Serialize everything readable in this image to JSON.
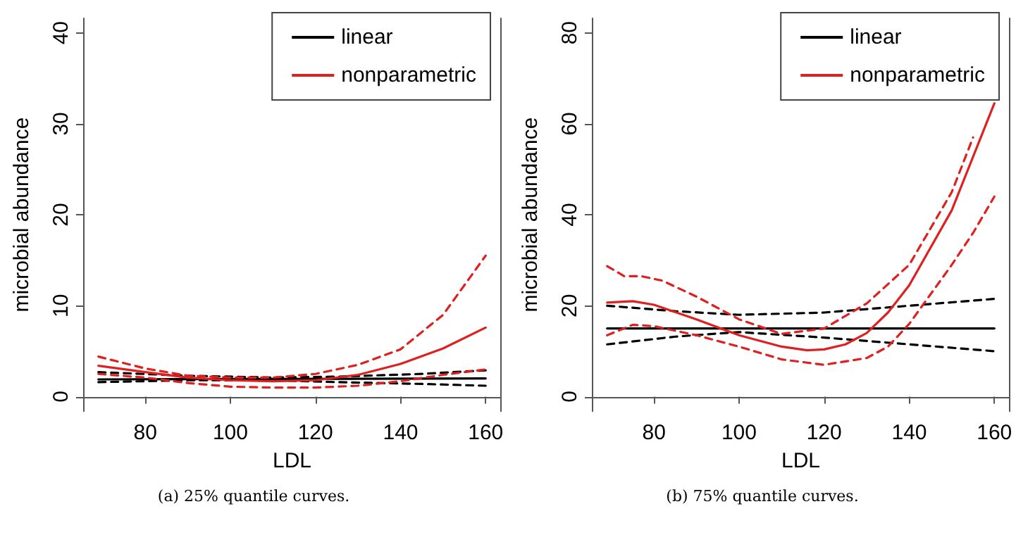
{
  "chart_data": [
    {
      "type": "line",
      "xlabel": "LDL",
      "ylabel": "microbial abundance",
      "annotations": [
        "(a) 25% quantile curves."
      ],
      "xlim": [
        65.4,
        163.6
      ],
      "ylim": [
        -1.6,
        41.6
      ],
      "xticks": [
        80,
        100,
        120,
        140,
        160
      ],
      "yticks": [
        0,
        10,
        20,
        30,
        40
      ],
      "grid": false,
      "legend": "top right",
      "marker": "none",
      "series": [
        {
          "name": "linear",
          "color": "#000000",
          "line_style": "solid",
          "x": [
            69,
            160
          ],
          "values": [
            1.9,
            2.0
          ]
        },
        {
          "color": "#000000",
          "line_style": "dashed",
          "x": [
            69,
            90,
            110,
            125,
            145,
            160
          ],
          "values": [
            2.7,
            2.3,
            2.1,
            2.2,
            2.5,
            2.9
          ]
        },
        {
          "color": "#000000",
          "line_style": "dashed",
          "x": [
            69,
            90,
            110,
            125,
            145,
            160
          ],
          "values": [
            1.6,
            1.8,
            1.8,
            1.6,
            1.4,
            1.2
          ]
        },
        {
          "name": "nonparametric",
          "color": "#df2020",
          "line_style": "solid",
          "x": [
            69,
            80,
            90,
            100,
            110,
            120,
            130,
            140,
            150,
            160
          ],
          "values": [
            3.4,
            2.7,
            2.1,
            1.8,
            1.7,
            1.8,
            2.4,
            3.6,
            5.3,
            7.6
          ]
        },
        {
          "color": "#df2020",
          "line_style": "dashed",
          "x": [
            69,
            80,
            90,
            100,
            110,
            120,
            130,
            140,
            150,
            160
          ],
          "values": [
            4.4,
            3.1,
            2.3,
            2.1,
            2.1,
            2.5,
            3.5,
            5.2,
            9.0,
            15.5
          ]
        },
        {
          "color": "#df2020",
          "line_style": "dashed",
          "x": [
            69,
            80,
            90,
            100,
            110,
            120,
            130,
            140,
            150,
            160
          ],
          "values": [
            2.5,
            2.1,
            1.5,
            1.1,
            1.0,
            1.0,
            1.2,
            1.7,
            2.4,
            3.0
          ]
        }
      ]
    },
    {
      "type": "line",
      "xlabel": "LDL",
      "ylabel": "microbial abundance",
      "annotations": [
        "(b) 75% quantile curves."
      ],
      "xlim": [
        65.4,
        163.6
      ],
      "ylim": [
        -3.2,
        83.2
      ],
      "xticks": [
        80,
        100,
        120,
        140,
        160
      ],
      "yticks": [
        0,
        20,
        40,
        60,
        80
      ],
      "grid": false,
      "legend": "top right",
      "marker": "none",
      "series": [
        {
          "name": "linear",
          "color": "#000000",
          "line_style": "solid",
          "x": [
            69,
            160
          ],
          "values": [
            15,
            15
          ]
        },
        {
          "color": "#000000",
          "line_style": "dashed",
          "x": [
            69,
            85,
            100,
            120,
            140,
            160
          ],
          "values": [
            20,
            18.8,
            18,
            18.5,
            20,
            21.5
          ]
        },
        {
          "color": "#000000",
          "line_style": "dashed",
          "x": [
            69,
            85,
            100,
            120,
            140,
            160
          ],
          "values": [
            11.5,
            13.2,
            14.2,
            13,
            11.5,
            10
          ]
        },
        {
          "name": "nonparametric",
          "color": "#df2020",
          "line_style": "solid",
          "x": [
            69,
            75,
            80,
            90,
            100,
            110,
            116,
            120,
            125,
            130,
            135,
            140,
            150,
            160
          ],
          "values": [
            20.7,
            21,
            20.2,
            17,
            13.5,
            11,
            10.2,
            10.4,
            11.5,
            14,
            18.5,
            24.5,
            41,
            64.5
          ]
        },
        {
          "color": "#df2020",
          "line_style": "dashed",
          "x": [
            69,
            73,
            77,
            82,
            90,
            100,
            110,
            120,
            130,
            140,
            150,
            155
          ],
          "values": [
            28.7,
            26.5,
            26.5,
            25.5,
            22,
            17,
            13.8,
            15,
            20.5,
            29,
            45,
            57
          ]
        },
        {
          "color": "#df2020",
          "line_style": "dashed",
          "x": [
            69,
            75,
            80,
            90,
            100,
            110,
            120,
            130,
            135,
            140,
            150,
            155,
            160
          ],
          "values": [
            13.5,
            15.8,
            15.5,
            13.5,
            11,
            8.2,
            7,
            8.5,
            11,
            16,
            29,
            36,
            44
          ]
        }
      ]
    }
  ]
}
